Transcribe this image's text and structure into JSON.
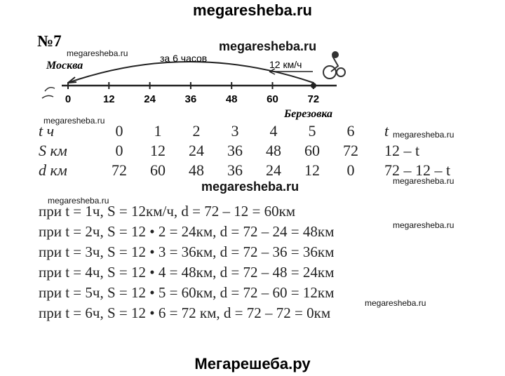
{
  "header": {
    "site": "megaresheba.ru"
  },
  "problem": {
    "number": "№7"
  },
  "diagram": {
    "duration": "за 6 часов",
    "start": "Москва",
    "speed": "12 км/ч",
    "end": "Березовка",
    "scale": [
      "0",
      "12",
      "24",
      "36",
      "48",
      "60",
      "72"
    ]
  },
  "table": {
    "rows": [
      [
        "t ч",
        "0",
        "1",
        "2",
        "3",
        "4",
        "5",
        "6",
        "t"
      ],
      [
        "S км",
        "0",
        "12",
        "24",
        "36",
        "48",
        "60",
        "72",
        "12 – t"
      ],
      [
        "d км",
        "72",
        "60",
        "48",
        "36",
        "24",
        "12",
        "0",
        "72 – 12 – t"
      ]
    ]
  },
  "solution": {
    "lines": [
      "при t = 1ч, S = 12км/ч, d = 72 – 12 = 60км",
      "при t = 2ч,  S = 12 • 2 = 24км, d = 72 – 24 = 48км",
      "при t = 3ч,  S = 12 • 3 = 36км, d = 72 – 36 = 36км",
      "при t = 4ч,  S = 12 • 4 = 48км, d = 72 – 48 = 24км",
      "при t = 5ч,  S = 12 • 5 = 60км, d = 72 – 60 = 12км",
      "при t = 6ч,  S = 12 • 6 = 72 км, d = 72 – 72 = 0км"
    ]
  },
  "watermarks": [
    "megaresheba.ru",
    "megaresheba.ru",
    "megaresheba.ru",
    "megaresheba.ru",
    "megaresheba.ru",
    "megaresheba.ru",
    "megaresheba.ru",
    "megaresheba.ru",
    "megaresheba.ru"
  ],
  "footer": {
    "site": "Мегарешеба.ру"
  }
}
